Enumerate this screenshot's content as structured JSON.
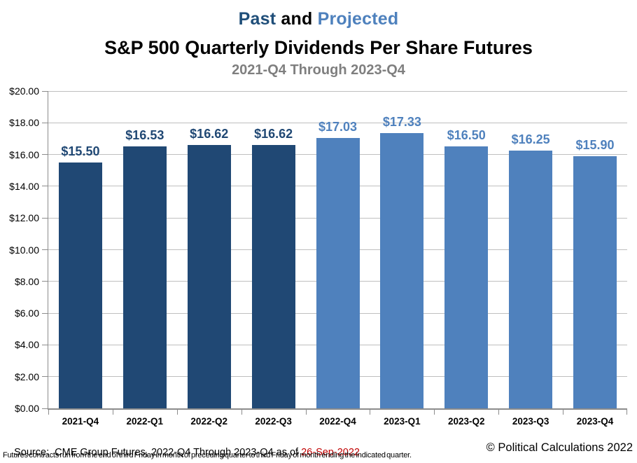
{
  "page": {
    "title1": {
      "past": "Past",
      "middle": " and ",
      "projected": "Projected"
    },
    "title_line2": "S&P 500 Quarterly Dividends Per Share Futures",
    "subtitle": "2021-Q4 Through 2023-Q4"
  },
  "chart_data": {
    "type": "bar",
    "title": "Past and Projected S&P 500 Quarterly Dividends Per Share Futures",
    "subtitle": "2021-Q4 Through 2023-Q4",
    "categories": [
      "2021-Q4",
      "2022-Q1",
      "2022-Q2",
      "2022-Q3",
      "2022-Q4",
      "2023-Q1",
      "2023-Q2",
      "2023-Q3",
      "2023-Q4"
    ],
    "values": [
      15.5,
      16.53,
      16.62,
      16.62,
      17.03,
      17.33,
      16.5,
      16.25,
      15.9
    ],
    "labels": [
      "$15.50",
      "$16.53",
      "$16.62",
      "$16.62",
      "$17.03",
      "$17.33",
      "$16.50",
      "$16.25",
      "$15.90"
    ],
    "series_split": {
      "past_count": 4,
      "projected_count": 5
    },
    "colors": {
      "past": "#204874",
      "projected": "#4F81BD"
    },
    "xlabel": "",
    "ylabel": "",
    "ylim": [
      0,
      20
    ],
    "ytick_step": 2,
    "ytick_labels": [
      "$0.00",
      "$2.00",
      "$4.00",
      "$6.00",
      "$8.00",
      "$10.00",
      "$12.00",
      "$14.00",
      "$16.00",
      "$18.00",
      "$20.00"
    ],
    "grid": true,
    "legend": "none"
  },
  "footer": {
    "source_prefix": "Source:  CME Group Futures, 2022-Q4 Through 2023-Q4 as of ",
    "source_date": "26-Sep-2022",
    "footnote": "Futures contracts run from the end of third Friday in month of preceding quarter to third Friday of month ending the indicated quarter.",
    "copyright": "© Political Calculations 2022"
  },
  "colors": {
    "title_past": "#1F4E79",
    "title_and": "#000000",
    "title_projected": "#4E81BD",
    "subtitle_gray": "#7F7F7F",
    "source_date_red": "#C00000",
    "gridline": "#BFBFBF",
    "axis": "#8C8C8C"
  }
}
